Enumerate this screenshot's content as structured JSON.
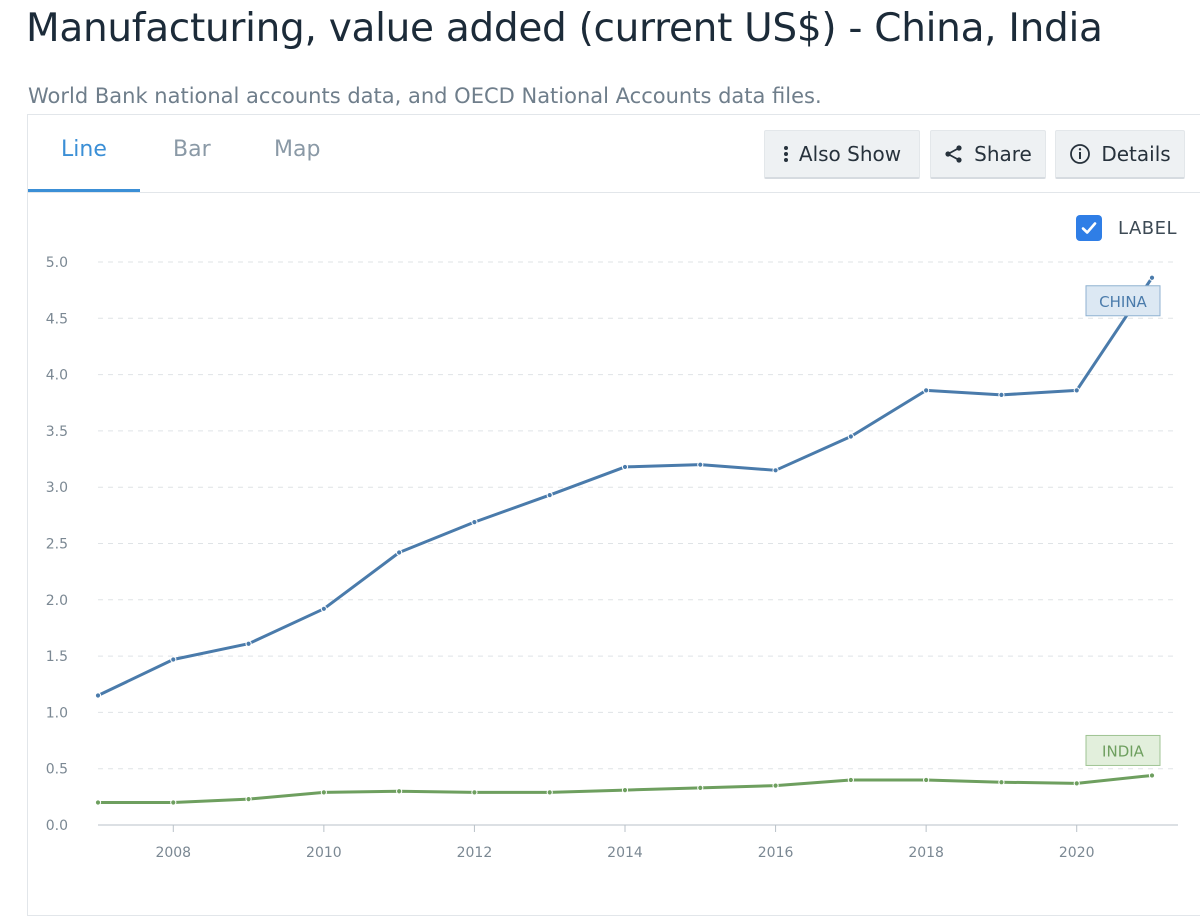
{
  "header": {
    "title": "Manufacturing, value added (current US$) - China, India",
    "source": "World Bank national accounts data, and OECD National Accounts data files."
  },
  "tabs": [
    {
      "label": "Line",
      "active": true
    },
    {
      "label": "Bar",
      "active": false
    },
    {
      "label": "Map",
      "active": false
    }
  ],
  "toolbar": {
    "also_show": "Also Show",
    "share": "Share",
    "details": "Details"
  },
  "label_toggle": {
    "label": "LABEL",
    "checked": true
  },
  "colors": {
    "china": "#4a7bab",
    "india": "#6e9f5f",
    "accent": "#3b8fd6"
  },
  "chart_data": {
    "type": "line",
    "title": "",
    "xlabel": "",
    "ylabel": "",
    "x": [
      2007,
      2008,
      2009,
      2010,
      2011,
      2012,
      2013,
      2014,
      2015,
      2016,
      2017,
      2018,
      2019,
      2020,
      2021
    ],
    "xticks": [
      "2008",
      "2010",
      "2012",
      "2014",
      "2016",
      "2018",
      "2020"
    ],
    "yticks": [
      "0.0",
      "0.5",
      "1.0",
      "1.5",
      "2.0",
      "2.5",
      "3.0",
      "3.5",
      "4.0",
      "4.5",
      "5.0"
    ],
    "ylim": [
      0,
      5.0
    ],
    "grid": true,
    "series": [
      {
        "name": "CHINA",
        "values": [
          1.15,
          1.47,
          1.61,
          1.92,
          2.42,
          2.69,
          2.93,
          3.18,
          3.2,
          3.15,
          3.45,
          3.86,
          3.82,
          3.86,
          4.86
        ]
      },
      {
        "name": "INDIA",
        "values": [
          0.2,
          0.2,
          0.23,
          0.29,
          0.3,
          0.29,
          0.29,
          0.31,
          0.33,
          0.35,
          0.4,
          0.4,
          0.38,
          0.37,
          0.44
        ]
      }
    ]
  }
}
